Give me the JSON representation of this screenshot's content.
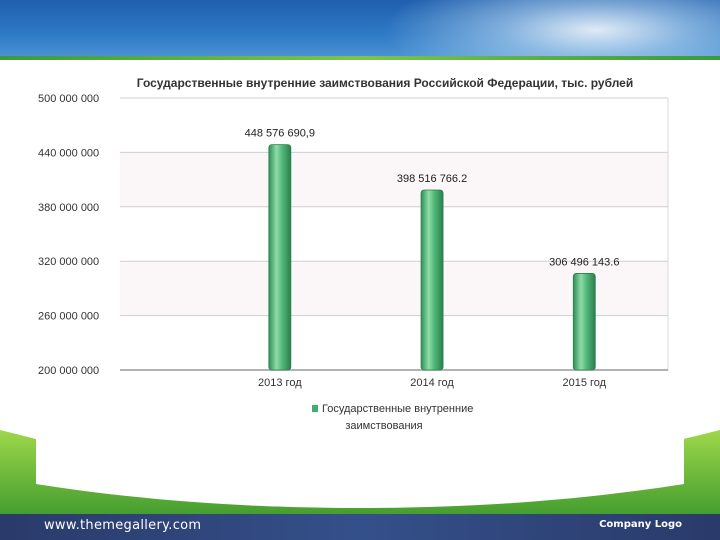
{
  "footer": {
    "url": "www.themegallery.com",
    "logo": "Company Logo"
  },
  "chart_data": {
    "type": "bar",
    "title": "Государственные внутренние заимствования Российской Федерации, тыс. рублей",
    "categories": [
      "2013 год",
      "2014 год",
      "2015 год"
    ],
    "series": [
      {
        "name": "Государственные внутренние заимствования",
        "values": [
          448576690.9,
          398516766.2,
          306496143.6
        ],
        "labels": [
          "448 576 690,9",
          "398 516 766.2",
          "306 496 143.6"
        ],
        "color": "#3fae6a"
      }
    ],
    "ylim": [
      200000000,
      500000000
    ],
    "yticks": [
      200000000,
      260000000,
      320000000,
      380000000,
      440000000,
      500000000
    ],
    "ytick_labels": [
      "200 000 000",
      "260 000 000",
      "320 000 000",
      "380 000 000",
      "440 000 000",
      "500 000 000"
    ],
    "legend_lines": [
      "Государственные внутренние",
      "заимствования"
    ],
    "legend_position": "bottom",
    "grid": true
  }
}
